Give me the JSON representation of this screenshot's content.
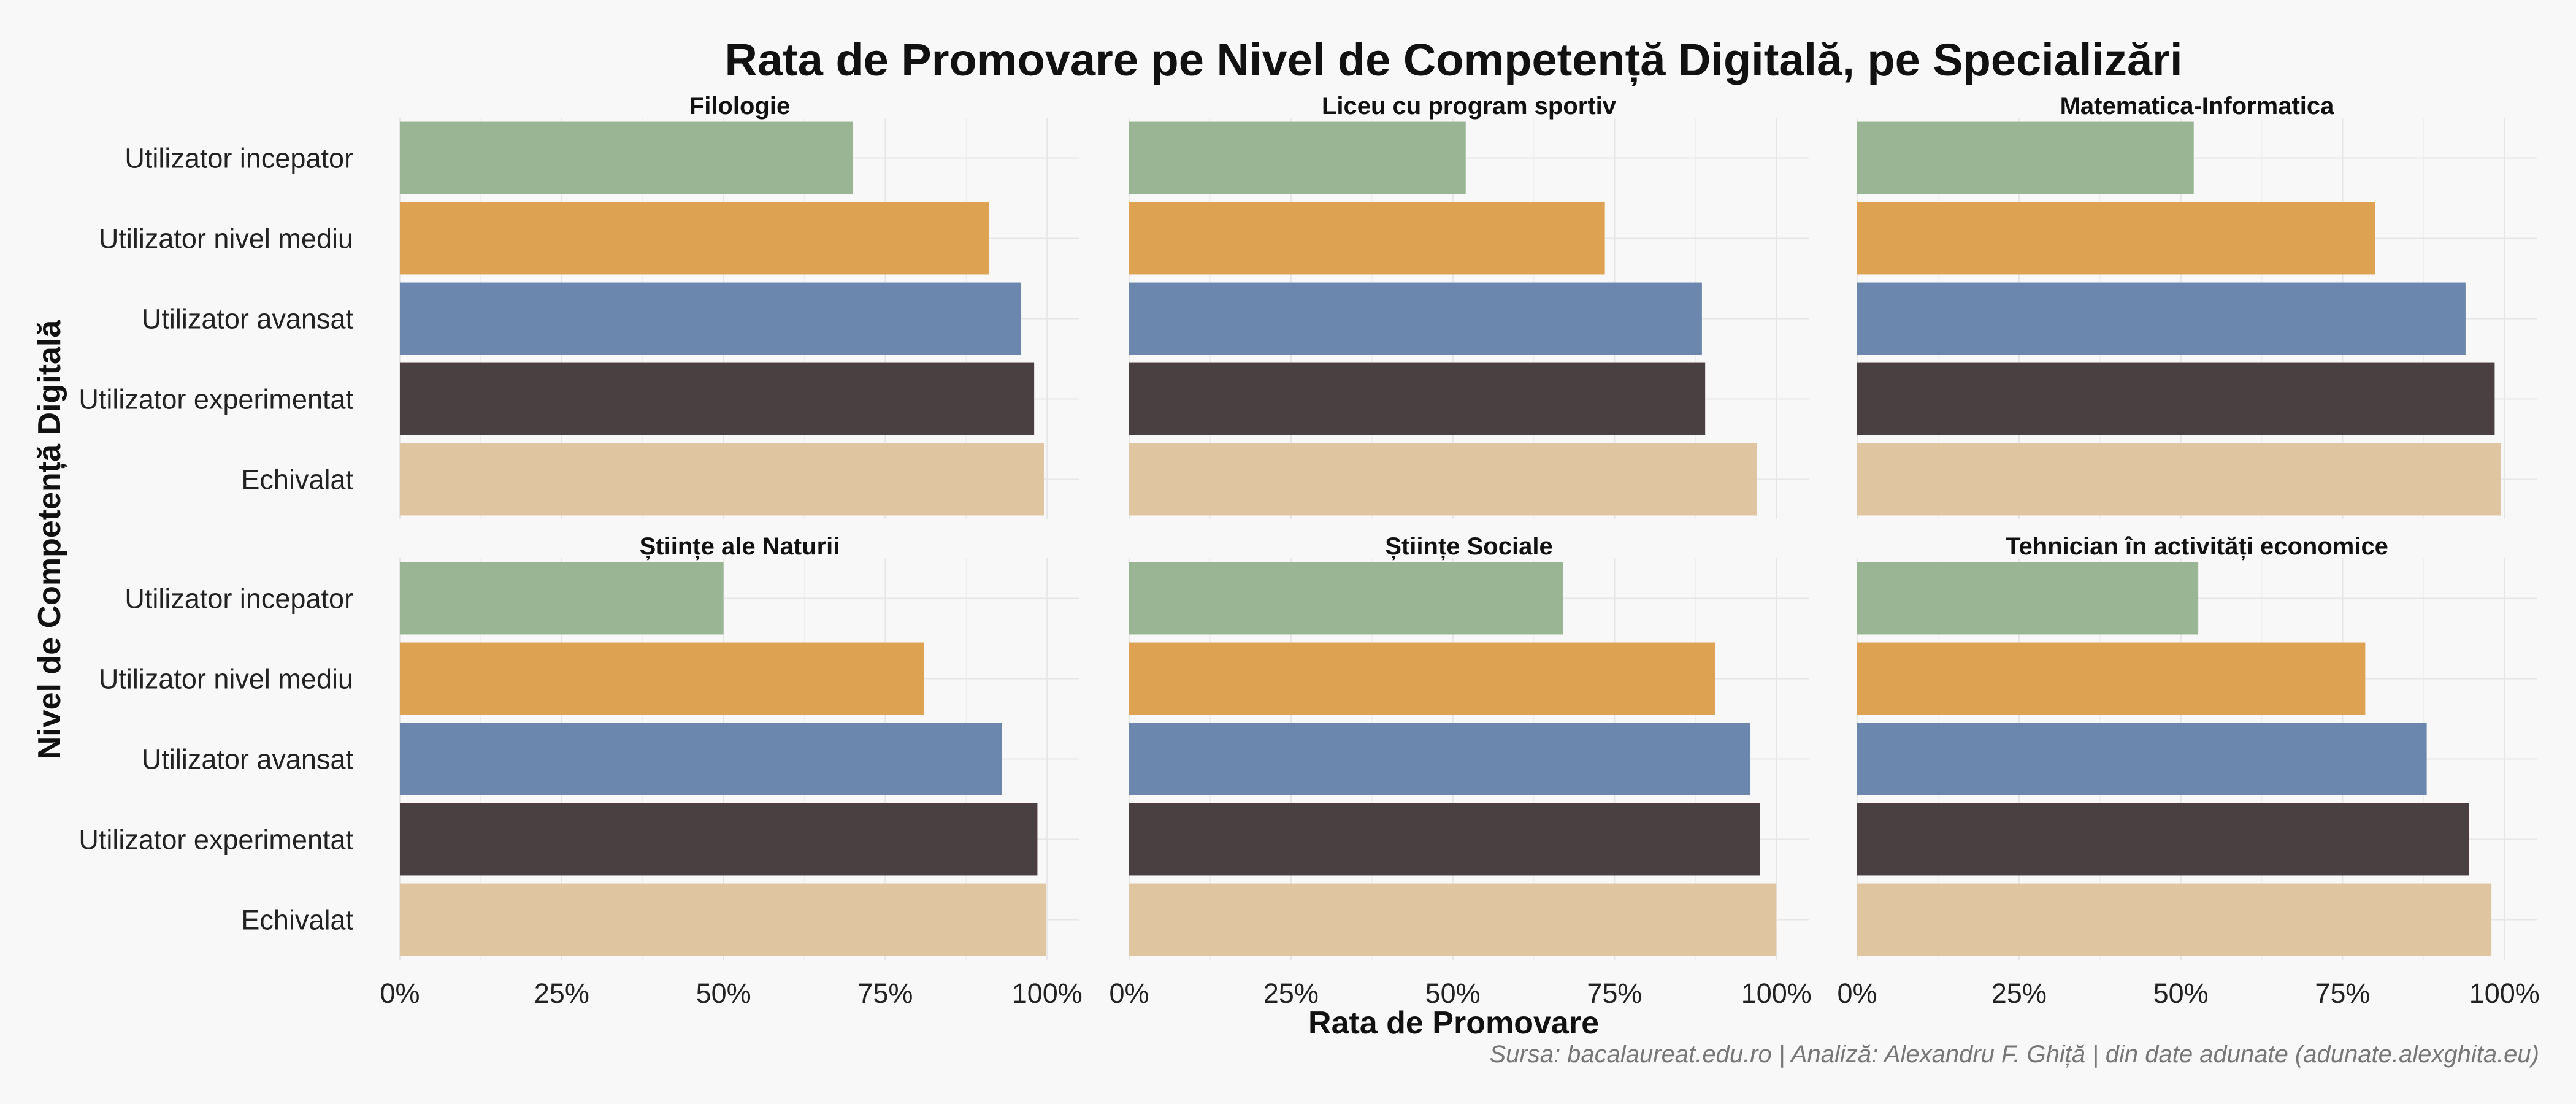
{
  "chart_data": {
    "type": "bar",
    "orientation": "horizontal",
    "title": "Rata de Promovare pe Nivel de Competență Digitală, pe Specializări",
    "xlabel": "Rata de Promovare",
    "ylabel": "Nivel de Competență Digitală",
    "caption": "Sursa: bacalaureat.edu.ro | Analiză: Alexandru F. Ghiță | din date adunate (adunate.alexghita.eu)",
    "xlim": [
      0,
      1.05
    ],
    "x_ticks": [
      0,
      0.25,
      0.5,
      0.75,
      1.0
    ],
    "x_tick_labels": [
      "0%",
      "25%",
      "50%",
      "75%",
      "100%"
    ],
    "grid": true,
    "legend": "none",
    "categories": [
      "Utilizator incepator",
      "Utilizator nivel mediu",
      "Utilizator avansat",
      "Utilizator experimentat",
      "Echivalat"
    ],
    "category_colors": [
      "#99b594",
      "#dea253",
      "#6b87ad",
      "#4a4042",
      "#dfc6a1"
    ],
    "facets": [
      {
        "title": "Filologie",
        "values": [
          0.7,
          0.91,
          0.96,
          0.98,
          0.995
        ]
      },
      {
        "title": "Liceu cu program sportiv",
        "values": [
          0.52,
          0.735,
          0.885,
          0.89,
          0.97
        ]
      },
      {
        "title": "Matematica-Informatica",
        "values": [
          0.52,
          0.8,
          0.94,
          0.985,
          0.995
        ]
      },
      {
        "title": "Științe ale Naturii",
        "values": [
          0.5,
          0.81,
          0.93,
          0.985,
          0.998
        ]
      },
      {
        "title": "Științe Sociale",
        "values": [
          0.67,
          0.905,
          0.96,
          0.975,
          1.0
        ]
      },
      {
        "title": "Tehnician în activități economice",
        "values": [
          0.527,
          0.785,
          0.88,
          0.945,
          0.98
        ]
      }
    ]
  }
}
